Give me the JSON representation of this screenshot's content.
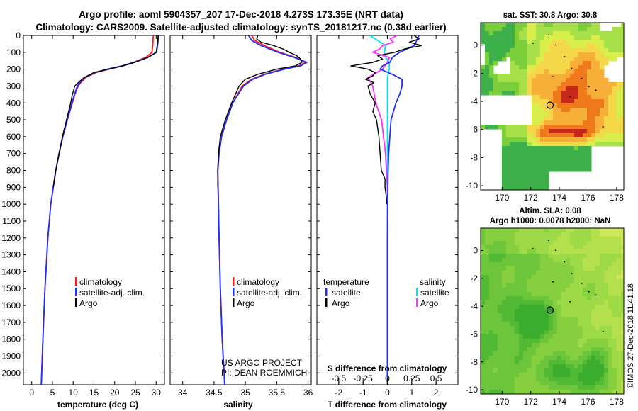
{
  "header": {
    "title_line1": "Argo profile: aoml 5904357_207 17-Dec-2018 4.273S 173.35E (NRT data)",
    "title_line2": "Climatology: CARS2009. Satellite-adjusted climatology: synTS_20181217.nc (0.38d earlier)"
  },
  "colors": {
    "climatology": "#ff1a1a",
    "satellite": "#1f2fff",
    "argo": "#000000",
    "satellite_salinity": "#00e5ff",
    "argo_salinity": "#ff33ff"
  },
  "depth_ticks": [
    "0",
    "100",
    "200",
    "300",
    "400",
    "500",
    "600",
    "700",
    "800",
    "900",
    "1000",
    "1100",
    "1200",
    "1300",
    "1400",
    "1500",
    "1600",
    "1700",
    "1800",
    "1900",
    "2000"
  ],
  "chart_data": [
    {
      "id": "temperature",
      "type": "line",
      "xlabel": "temperature (deg C)",
      "ylabel": "pressure",
      "xlim": [
        -2,
        32
      ],
      "ylim": [
        2070,
        0
      ],
      "xticks": [
        "0",
        "5",
        "10",
        "15",
        "20",
        "25",
        "30"
      ],
      "legend_items": [
        "climatology",
        "satellite-adj. clim.",
        "Argo"
      ],
      "series": [
        {
          "name": "climatology",
          "depth": [
            0,
            50,
            100,
            130,
            160,
            180,
            200,
            220,
            250,
            280,
            300,
            350,
            400,
            500,
            600,
            700,
            800,
            1000,
            1200,
            1500,
            1800,
            2000,
            2070
          ],
          "values": [
            29.3,
            29.2,
            29.0,
            27.5,
            24.5,
            22.0,
            18.5,
            15.5,
            13.0,
            11.8,
            11.2,
            10.4,
            9.8,
            8.6,
            7.5,
            6.6,
            5.8,
            4.6,
            3.9,
            3.2,
            2.7,
            2.4,
            2.3
          ]
        },
        {
          "name": "satellite-adj. clim.",
          "depth": [
            0,
            50,
            100,
            130,
            160,
            180,
            200,
            220,
            250,
            280,
            300,
            350,
            400,
            500,
            600,
            700,
            800,
            1000,
            1200,
            1500,
            1800,
            2000,
            2070
          ],
          "values": [
            30.6,
            30.4,
            30.1,
            28.0,
            24.6,
            21.8,
            18.2,
            15.2,
            12.8,
            11.6,
            11.0,
            10.3,
            9.7,
            8.6,
            7.5,
            6.6,
            5.8,
            4.6,
            3.9,
            3.2,
            2.7,
            2.4,
            2.3
          ]
        },
        {
          "name": "Argo",
          "depth": [
            0,
            50,
            100,
            130,
            160,
            180,
            200,
            220,
            250,
            280,
            300,
            350,
            400,
            500,
            600,
            700,
            800,
            900
          ],
          "values": [
            30.5,
            30.3,
            30.0,
            28.0,
            24.8,
            22.0,
            18.6,
            15.0,
            12.6,
            11.2,
            10.4,
            9.8,
            9.4,
            8.4,
            7.4,
            6.6,
            5.8,
            5.2
          ]
        }
      ]
    },
    {
      "id": "salinity",
      "type": "line",
      "xlabel": "salinity",
      "ylabel": "pressure",
      "xlim": [
        33.8,
        36.05
      ],
      "ylim": [
        2070,
        0
      ],
      "xticks": [
        "34",
        "34.5",
        "35",
        "35.5",
        "36"
      ],
      "legend_items": [
        "climatology",
        "satellite-adj. clim.",
        "Argo"
      ],
      "series": [
        {
          "name": "climatology",
          "depth": [
            0,
            30,
            60,
            100,
            130,
            160,
            180,
            200,
            230,
            260,
            300,
            400,
            500,
            600,
            700,
            800,
            1000,
            1200,
            1500,
            1800,
            2000,
            2070
          ],
          "values": [
            35.1,
            35.15,
            35.3,
            35.55,
            35.8,
            35.96,
            35.85,
            35.6,
            35.3,
            35.1,
            34.95,
            34.8,
            34.7,
            34.62,
            34.58,
            34.56,
            34.57,
            34.58,
            34.6,
            34.63,
            34.66,
            34.67
          ]
        },
        {
          "name": "satellite-adj. clim.",
          "depth": [
            0,
            30,
            60,
            100,
            130,
            160,
            180,
            200,
            230,
            260,
            300,
            400,
            500,
            600,
            700,
            800,
            1000,
            1200,
            1500,
            1800,
            2000,
            2070
          ],
          "values": [
            35.05,
            35.1,
            35.25,
            35.52,
            35.78,
            35.98,
            35.88,
            35.62,
            35.32,
            35.12,
            34.97,
            34.8,
            34.7,
            34.62,
            34.58,
            34.56,
            34.57,
            34.58,
            34.6,
            34.63,
            34.66,
            34.67
          ]
        },
        {
          "name": "Argo",
          "depth": [
            0,
            20,
            40,
            60,
            80,
            100,
            120,
            140,
            160,
            180,
            200,
            230,
            260,
            300,
            400,
            500,
            600,
            700,
            800,
            900
          ],
          "values": [
            35.2,
            35.18,
            35.25,
            35.45,
            35.6,
            35.7,
            35.82,
            35.88,
            35.9,
            35.8,
            35.5,
            35.2,
            35.0,
            34.9,
            34.78,
            34.68,
            34.6,
            34.57,
            34.56,
            34.56
          ]
        }
      ]
    },
    {
      "id": "differences",
      "type": "line",
      "xlabel": "T difference from climatology",
      "x2label": "S difference from climatology",
      "xlim": [
        -2.9,
        2.9
      ],
      "x2lim": [
        -0.725,
        0.725
      ],
      "ylim": [
        2070,
        0
      ],
      "xticks": [
        "-2",
        "-1",
        "0",
        "1",
        "2"
      ],
      "x2ticks": [
        "-0.5",
        "-0.25",
        "0",
        "0.25",
        "0.5"
      ],
      "legend_headings": [
        "temperature",
        "salinity"
      ],
      "legend_temperature": [
        "satellite",
        "Argo"
      ],
      "legend_salinity": [
        "satellite",
        "Argo"
      ],
      "series": [
        {
          "name": "T satellite",
          "depth": [
            0,
            30,
            60,
            100,
            130,
            160,
            180,
            200,
            230,
            260,
            300,
            350,
            400,
            500,
            600,
            700,
            800,
            900,
            1000,
            1200,
            1500,
            1800,
            2000,
            2070
          ],
          "values": [
            1.3,
            1.2,
            1.1,
            0.5,
            0.2,
            0.1,
            -0.2,
            -0.3,
            0.2,
            0.6,
            0.6,
            0.5,
            0.35,
            0.15,
            0.1,
            0.05,
            0.03,
            0.02,
            0.01,
            0.0,
            0.0,
            0.0,
            0.0,
            0.0
          ]
        },
        {
          "name": "T Argo",
          "depth": [
            0,
            20,
            40,
            60,
            80,
            100,
            120,
            140,
            160,
            180,
            200,
            220,
            240,
            260,
            280,
            300,
            350,
            400,
            450,
            500,
            600,
            700,
            800,
            850,
            900,
            950,
            1000
          ],
          "values": [
            1.1,
            1.3,
            0.9,
            1.4,
            0.7,
            0.3,
            -0.4,
            -0.2,
            -0.6,
            -1.5,
            -0.8,
            -0.5,
            -0.6,
            -0.9,
            -0.55,
            -0.8,
            -0.7,
            -0.5,
            -0.6,
            -0.45,
            -0.35,
            -0.3,
            -0.25,
            -0.1,
            -0.1,
            -0.05,
            -0.03
          ]
        },
        {
          "name": "S satellite",
          "depth": [
            0,
            30,
            60,
            100,
            130,
            160,
            200,
            250,
            300,
            400,
            500,
            700,
            1000,
            1500,
            2000,
            2070
          ],
          "values": [
            -0.18,
            -0.1,
            -0.02,
            -0.03,
            -0.02,
            0.02,
            0.02,
            0.0,
            0.0,
            0.0,
            0.0,
            0.0,
            0.0,
            0.0,
            0.0,
            0.0
          ]
        },
        {
          "name": "S Argo",
          "depth": [
            0,
            20,
            40,
            60,
            80,
            100,
            130,
            160,
            200,
            250,
            300,
            400,
            500,
            600,
            700,
            800,
            900,
            950
          ],
          "values": [
            0.1,
            0.03,
            0.06,
            -0.05,
            -0.08,
            -0.15,
            0.02,
            0.0,
            -0.05,
            -0.2,
            -0.15,
            -0.12,
            -0.06,
            -0.04,
            -0.02,
            -0.01,
            0.0,
            0.0
          ]
        }
      ]
    },
    {
      "id": "sst_map",
      "type": "heatmap",
      "title": "sat. SST: 30.8 Argo: 30.8",
      "xticks": [
        "170",
        "172",
        "174",
        "176",
        "178"
      ],
      "yticks": [
        "0",
        "-2",
        "-4",
        "-6",
        "-8",
        "-10"
      ],
      "xlim": [
        168.5,
        178.5
      ],
      "ylim": [
        -10.3,
        1.6
      ],
      "argo_position": [
        173.35,
        -4.273
      ],
      "values_note": "sea surface temperature field, warm (red/orange) to cooler (green)"
    },
    {
      "id": "sla_map",
      "type": "heatmap",
      "title_line1": "Altim. SLA: 0.08",
      "title_line2": "Argo h1000: 0.0078 h2000: NaN",
      "xticks": [
        "170",
        "172",
        "174",
        "176",
        "178"
      ],
      "yticks": [
        "0",
        "-2",
        "-4",
        "-6",
        "-8",
        "-10"
      ],
      "xlim": [
        168.5,
        178.5
      ],
      "ylim": [
        -10.3,
        1.6
      ],
      "argo_position": [
        173.35,
        -4.273
      ]
    }
  ],
  "notes": {
    "project_line1": "US ARGO PROJECT",
    "project_line2": "PI: DEAN ROEMMICH",
    "copyright": "©IMOS 27-Dec-2018 11:41:18"
  }
}
